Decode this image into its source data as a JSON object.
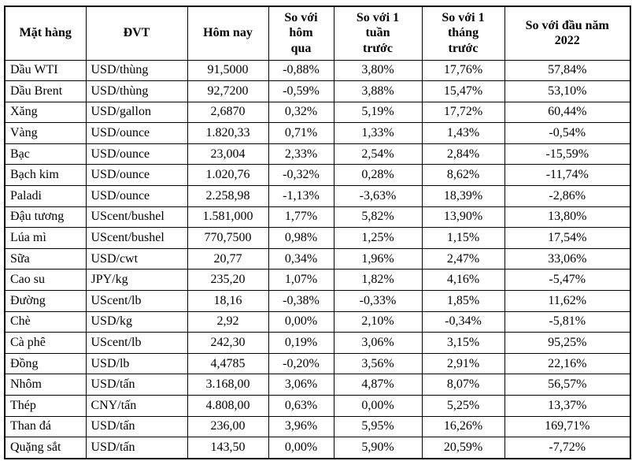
{
  "table": {
    "title_semantic": "commodity-price-table",
    "columns": [
      {
        "label": "Mặt hàng"
      },
      {
        "label": "ĐVT"
      },
      {
        "label": "Hôm nay"
      },
      {
        "label": "So với\nhôm\nqua"
      },
      {
        "label": "So với 1\ntuần\ntrước"
      },
      {
        "label": "So với 1\ntháng\ntrước"
      },
      {
        "label": "So với đầu năm\n2022"
      }
    ],
    "rows": [
      [
        "Dầu WTI",
        "USD/thùng",
        "91,5000",
        "-0,88%",
        "3,80%",
        "17,76%",
        "57,84%"
      ],
      [
        "Dầu Brent",
        "USD/thùng",
        "92,7200",
        "-0,59%",
        "3,88%",
        "15,47%",
        "53,10%"
      ],
      [
        "Xăng",
        "USD/gallon",
        "2,6870",
        "0,32%",
        "5,19%",
        "17,72%",
        "60,44%"
      ],
      [
        "Vàng",
        "USD/ounce",
        "1.820,33",
        "0,71%",
        "1,33%",
        "1,43%",
        "-0,54%"
      ],
      [
        "Bạc",
        "USD/ounce",
        "23,004",
        "2,33%",
        "2,54%",
        "2,84%",
        "-15,59%"
      ],
      [
        "Bạch kim",
        "USD/ounce",
        "1.020,76",
        "-0,32%",
        "0,28%",
        "8,62%",
        "-11,74%"
      ],
      [
        "Paladi",
        "USD/ounce",
        "2.258,98",
        "-1,13%",
        "-3,63%",
        "18,39%",
        "-2,86%"
      ],
      [
        "Đậu tương",
        "UScent/bushel",
        "1.581,000",
        "1,77%",
        "5,82%",
        "13,90%",
        "13,80%"
      ],
      [
        "Lúa mì",
        "UScent/bushel",
        "770,7500",
        "0,98%",
        "1,25%",
        "1,15%",
        "17,54%"
      ],
      [
        "Sữa",
        "USD/cwt",
        "20,77",
        "0,34%",
        "1,96%",
        "2,47%",
        "33,06%"
      ],
      [
        "Cao su",
        "JPY/kg",
        "235,20",
        "1,07%",
        "1,82%",
        "4,16%",
        "-5,47%"
      ],
      [
        "Đường",
        "UScent/lb",
        "18,16",
        "-0,38%",
        "-0,33%",
        "1,85%",
        "11,62%"
      ],
      [
        "Chè",
        "USD/kg",
        "2,92",
        "0,00%",
        "2,10%",
        "-0,34%",
        "-5,81%"
      ],
      [
        "Cà phê",
        "UScent/lb",
        "242,30",
        "0,19%",
        "3,06%",
        "3,15%",
        "95,25%"
      ],
      [
        "Đồng",
        "USD/lb",
        "4,4785",
        "-0,20%",
        "3,56%",
        "2,91%",
        "22,16%"
      ],
      [
        "Nhôm",
        "USD/tấn",
        "3.168,00",
        "3,06%",
        "4,87%",
        "8,07%",
        "56,57%"
      ],
      [
        "Thép",
        "CNY/tấn",
        "4.808,00",
        "0,63%",
        "0,00%",
        "5,25%",
        "13,37%"
      ],
      [
        "Than đá",
        "USD/tấn",
        "236,00",
        "3,96%",
        "5,95%",
        "16,26%",
        "169,71%"
      ],
      [
        "Quặng sắt",
        "USD/tấn",
        "143,50",
        "0,00%",
        "5,90%",
        "20,59%",
        "-7,72%"
      ]
    ]
  }
}
